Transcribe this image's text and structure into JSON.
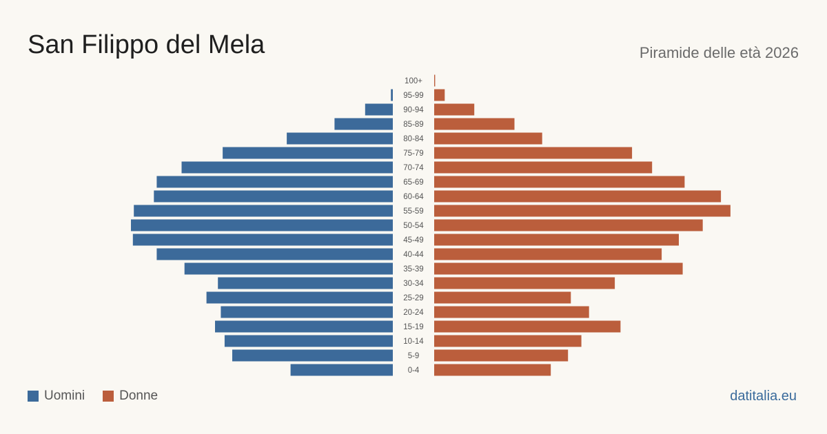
{
  "header": {
    "title": "San Filippo del Mela",
    "subtitle": "Piramide delle età 2026"
  },
  "legend": {
    "men_label": "Uomini",
    "women_label": "Donne"
  },
  "footer": {
    "brand": "datitalia.eu"
  },
  "colors": {
    "men": "#3c6a9a",
    "women": "#bb5e3c",
    "tick_text": "#555555"
  },
  "chart_data": {
    "type": "bar",
    "orientation": "horizontal-pyramid",
    "categories": [
      "100+",
      "95-99",
      "90-94",
      "85-89",
      "80-84",
      "75-79",
      "70-74",
      "65-69",
      "60-64",
      "55-59",
      "50-54",
      "45-49",
      "40-44",
      "35-39",
      "30-34",
      "25-29",
      "20-24",
      "15-19",
      "10-14",
      "5-9",
      "0-4"
    ],
    "series": [
      {
        "name": "Uomini",
        "values": [
          0,
          2,
          29,
          61,
          111,
          178,
          221,
          247,
          250,
          271,
          274,
          272,
          247,
          218,
          183,
          195,
          180,
          186,
          176,
          168,
          107
        ]
      },
      {
        "name": "Donne",
        "values": [
          1,
          11,
          42,
          84,
          113,
          207,
          228,
          262,
          300,
          310,
          281,
          256,
          238,
          260,
          189,
          143,
          162,
          195,
          154,
          140,
          122
        ]
      }
    ]
  }
}
